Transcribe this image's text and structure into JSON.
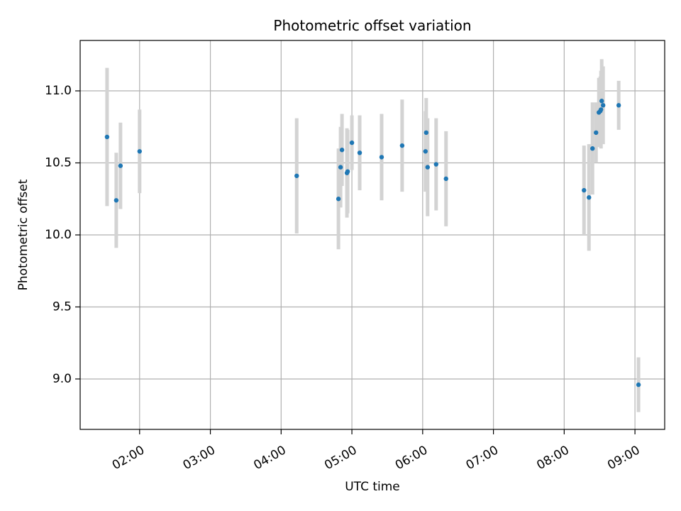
{
  "chart_data": {
    "type": "scatter",
    "title": "Photometric offset variation",
    "xlabel": "UTC time",
    "ylabel": "Photometric offset",
    "x_unit": "hours UTC",
    "xlim": [
      1.16,
      9.42
    ],
    "ylim": [
      8.65,
      11.35
    ],
    "x_ticks": [
      {
        "value": 2,
        "label": "02:00"
      },
      {
        "value": 3,
        "label": "03:00"
      },
      {
        "value": 4,
        "label": "04:00"
      },
      {
        "value": 5,
        "label": "05:00"
      },
      {
        "value": 6,
        "label": "06:00"
      },
      {
        "value": 7,
        "label": "07:00"
      },
      {
        "value": 8,
        "label": "08:00"
      },
      {
        "value": 9,
        "label": "09:00"
      }
    ],
    "y_ticks": [
      {
        "value": 9.0,
        "label": "9.0"
      },
      {
        "value": 9.5,
        "label": "9.5"
      },
      {
        "value": 10.0,
        "label": "10.0"
      },
      {
        "value": 10.5,
        "label": "10.5"
      },
      {
        "value": 11.0,
        "label": "11.0"
      }
    ],
    "grid": true,
    "marker_color": "#1f77b4",
    "errorbar_color": "#d3d3d3",
    "points": [
      {
        "x": 1.54,
        "y": 10.68,
        "err": 0.48
      },
      {
        "x": 1.67,
        "y": 10.24,
        "err": 0.33
      },
      {
        "x": 1.73,
        "y": 10.48,
        "err": 0.3
      },
      {
        "x": 2.0,
        "y": 10.58,
        "err": 0.29
      },
      {
        "x": 4.22,
        "y": 10.41,
        "err": 0.4
      },
      {
        "x": 4.81,
        "y": 10.25,
        "err": 0.35
      },
      {
        "x": 4.84,
        "y": 10.47,
        "err": 0.28
      },
      {
        "x": 4.86,
        "y": 10.59,
        "err": 0.25
      },
      {
        "x": 4.93,
        "y": 10.43,
        "err": 0.31
      },
      {
        "x": 4.94,
        "y": 10.44,
        "err": 0.29
      },
      {
        "x": 5.0,
        "y": 10.64,
        "err": 0.19
      },
      {
        "x": 5.11,
        "y": 10.57,
        "err": 0.26
      },
      {
        "x": 5.42,
        "y": 10.54,
        "err": 0.3
      },
      {
        "x": 5.71,
        "y": 10.62,
        "err": 0.32
      },
      {
        "x": 6.04,
        "y": 10.58,
        "err": 0.28
      },
      {
        "x": 6.05,
        "y": 10.71,
        "err": 0.24
      },
      {
        "x": 6.07,
        "y": 10.47,
        "err": 0.34
      },
      {
        "x": 6.19,
        "y": 10.49,
        "err": 0.32
      },
      {
        "x": 6.33,
        "y": 10.39,
        "err": 0.33
      },
      {
        "x": 8.28,
        "y": 10.31,
        "err": 0.31
      },
      {
        "x": 8.35,
        "y": 10.26,
        "err": 0.37
      },
      {
        "x": 8.4,
        "y": 10.6,
        "err": 0.32
      },
      {
        "x": 8.45,
        "y": 10.71,
        "err": 0.21
      },
      {
        "x": 8.49,
        "y": 10.85,
        "err": 0.24
      },
      {
        "x": 8.51,
        "y": 10.86,
        "err": 0.24
      },
      {
        "x": 8.52,
        "y": 10.87,
        "err": 0.27
      },
      {
        "x": 8.53,
        "y": 10.93,
        "err": 0.29
      },
      {
        "x": 8.55,
        "y": 10.9,
        "err": 0.27
      },
      {
        "x": 8.77,
        "y": 10.9,
        "err": 0.17
      },
      {
        "x": 9.05,
        "y": 8.96,
        "err": 0.19
      }
    ]
  }
}
